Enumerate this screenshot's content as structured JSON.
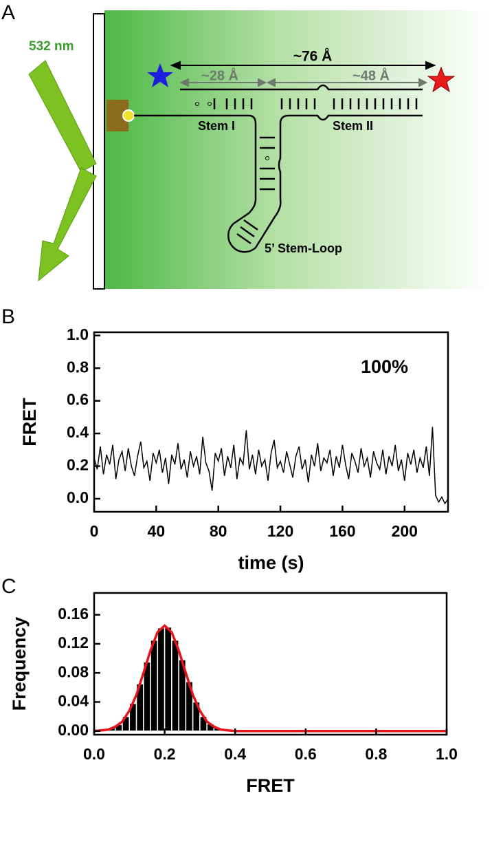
{
  "panel_a": {
    "label": "A",
    "laser": "532 nm",
    "distance_total": "~76 Å",
    "distance_1": "~28 Å",
    "distance_2": "~48 Å",
    "stem_1": "Stem I",
    "stem_2": "Stem II",
    "loop": "5’ Stem-Loop"
  },
  "chart_data": [
    {
      "type": "line",
      "panel_label": "B",
      "xlabel": "time (s)",
      "ylabel": "FRET",
      "annotation": "100%",
      "xlim": [
        0,
        228
      ],
      "xticks": [
        0,
        40,
        80,
        120,
        160,
        200
      ],
      "ylim": [
        -0.08,
        1.02
      ],
      "yticks": [
        {
          "value": 0,
          "label": "0.0"
        },
        {
          "value": 0.2,
          "label": "0.2"
        },
        {
          "value": 0.4,
          "label": "0.4"
        },
        {
          "value": 0.6,
          "label": "0.6"
        },
        {
          "value": 0.8,
          "label": "0.8"
        },
        {
          "value": 1,
          "label": "1.0"
        }
      ],
      "x": [
        0,
        2,
        4,
        6,
        8,
        10,
        12,
        14,
        16,
        18,
        20,
        22,
        24,
        26,
        28,
        30,
        32,
        34,
        36,
        38,
        40,
        42,
        44,
        46,
        48,
        50,
        52,
        54,
        56,
        58,
        60,
        62,
        64,
        66,
        68,
        70,
        72,
        74,
        76,
        78,
        80,
        82,
        84,
        86,
        88,
        90,
        92,
        94,
        96,
        98,
        100,
        102,
        104,
        106,
        108,
        110,
        112,
        114,
        116,
        118,
        120,
        122,
        124,
        126,
        128,
        130,
        132,
        134,
        136,
        138,
        140,
        142,
        144,
        146,
        148,
        150,
        152,
        154,
        156,
        158,
        160,
        162,
        164,
        166,
        168,
        170,
        172,
        174,
        176,
        178,
        180,
        182,
        184,
        186,
        188,
        190,
        192,
        194,
        196,
        198,
        200,
        202,
        204,
        206,
        208,
        210,
        212,
        214,
        216,
        218,
        220,
        222,
        224,
        226,
        228
      ],
      "series": [
        {
          "color": "#000000",
          "values": [
            0.25,
            0.18,
            0.32,
            0.15,
            0.27,
            0.21,
            0.33,
            0.12,
            0.24,
            0.29,
            0.17,
            0.31,
            0.2,
            0.14,
            0.26,
            0.35,
            0.19,
            0.23,
            0.11,
            0.28,
            0.22,
            0.3,
            0.16,
            0.25,
            0.09,
            0.27,
            0.21,
            0.34,
            0.18,
            0.24,
            0.13,
            0.29,
            0.2,
            0.26,
            0.15,
            0.38,
            0.22,
            0.17,
            0.05,
            0.28,
            0.23,
            0.31,
            0.14,
            0.26,
            0.19,
            0.33,
            0.12,
            0.25,
            0.21,
            0.42,
            0.18,
            0.27,
            0.15,
            0.3,
            0.2,
            0.24,
            0.11,
            0.28,
            0.36,
            0.19,
            0.23,
            0.16,
            0.29,
            0.21,
            0.13,
            0.26,
            0.32,
            0.18,
            0.24,
            0.1,
            0.27,
            0.2,
            0.34,
            0.17,
            0.25,
            0.22,
            0.3,
            0.14,
            0.26,
            0.19,
            0.33,
            0.21,
            0.12,
            0.28,
            0.23,
            0.16,
            0.31,
            0.2,
            0.25,
            0.13,
            0.29,
            0.22,
            0.18,
            0.3,
            0.15,
            0.26,
            0.2,
            0.33,
            0.17,
            0.24,
            0.11,
            0.28,
            0.21,
            0.3,
            0.16,
            0.25,
            0.19,
            0.32,
            0.14,
            0.44,
            0.02,
            -0.02,
            0.01,
            -0.03,
            0
          ]
        }
      ]
    },
    {
      "type": "histogram",
      "panel_label": "C",
      "xlabel": "FRET",
      "ylabel": "Frequency",
      "xlim": [
        0,
        1
      ],
      "xticks": [
        {
          "value": 0,
          "label": "0.0"
        },
        {
          "value": 0.2,
          "label": "0.2"
        },
        {
          "value": 0.4,
          "label": "0.4"
        },
        {
          "value": 0.6,
          "label": "0.6"
        },
        {
          "value": 0.8,
          "label": "0.8"
        },
        {
          "value": 1,
          "label": "1.0"
        }
      ],
      "ylim": [
        -0.005,
        0.19
      ],
      "yticks": [
        {
          "value": 0,
          "label": "0.00"
        },
        {
          "value": 0.04,
          "label": "0.04"
        },
        {
          "value": 0.08,
          "label": "0.08"
        },
        {
          "value": 0.12,
          "label": "0.12"
        },
        {
          "value": 0.16,
          "label": "0.16"
        }
      ],
      "color": "#000000",
      "bins": [
        0,
        0.02,
        0.04,
        0.06,
        0.08,
        0.1,
        0.12,
        0.14,
        0.16,
        0.18,
        0.2,
        0.22,
        0.24,
        0.26,
        0.28,
        0.3,
        0.32,
        0.34,
        0.36,
        0.38,
        0.4,
        0.42,
        0.44
      ],
      "counts": [
        0.001,
        0.002,
        0.004,
        0.009,
        0.02,
        0.038,
        0.065,
        0.095,
        0.125,
        0.142,
        0.143,
        0.125,
        0.098,
        0.068,
        0.04,
        0.02,
        0.01,
        0.005,
        0.003,
        0.002,
        0.001,
        0.001
      ],
      "fit": {
        "color": "#e8141c",
        "x": [
          0,
          0.02,
          0.04,
          0.06,
          0.08,
          0.1,
          0.12,
          0.14,
          0.16,
          0.18,
          0.2,
          0.22,
          0.24,
          0.26,
          0.28,
          0.3,
          0.32,
          0.34,
          0.36,
          0.38,
          0.4,
          0.42,
          0.44,
          0.46,
          0.48,
          0.5,
          0.52,
          0.54,
          0.56,
          0.58,
          0.6,
          0.62,
          0.64,
          0.66,
          0.68,
          0.7,
          0.72,
          0.74,
          0.76,
          0.78,
          0.8,
          0.82,
          0.84,
          0.86,
          0.88,
          0.9,
          0.92,
          0.94,
          0.96,
          0.98,
          1
        ],
        "y": [
          0,
          0.001,
          0.002,
          0.006,
          0.013,
          0.028,
          0.05,
          0.08,
          0.111,
          0.136,
          0.145,
          0.136,
          0.111,
          0.08,
          0.05,
          0.028,
          0.013,
          0.006,
          0.002,
          0.001,
          0,
          0,
          0,
          0,
          0,
          0,
          0,
          0,
          0,
          0,
          0,
          0,
          0,
          0,
          0,
          0,
          0,
          0,
          0,
          0,
          0,
          0,
          0,
          0,
          0,
          0,
          0,
          0,
          0,
          0,
          0
        ]
      }
    }
  ]
}
